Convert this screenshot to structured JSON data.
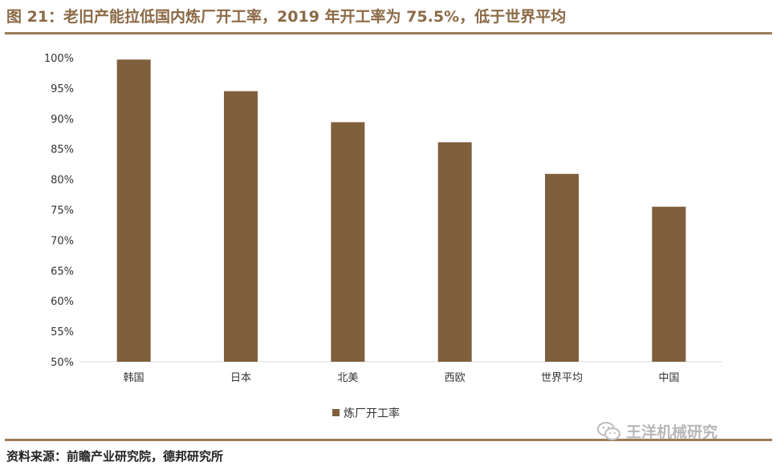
{
  "figure": {
    "title": "图 21：老旧产能拉低国内炼厂开工率，2019 年开工率为 75.5%，低于世界平均",
    "source": "资料来源：前瞻产业研究院，德邦研究所"
  },
  "watermark": {
    "text": "王洋机械研究",
    "icon": "wechat-icon"
  },
  "colors": {
    "bar": "#7f5f3c",
    "rule": "#9c7b59",
    "title": "#8c6a46",
    "axis": "#d9d9d9"
  },
  "chart_data": {
    "type": "bar",
    "categories": [
      "韩国",
      "日本",
      "北美",
      "西欧",
      "世界平均",
      "中国"
    ],
    "series": [
      {
        "name": "炼厂开工率",
        "values": [
          99.7,
          94.5,
          89.4,
          86.1,
          80.9,
          75.5
        ]
      }
    ],
    "ylim": [
      50,
      100
    ],
    "yticks": [
      50,
      55,
      60,
      65,
      70,
      75,
      80,
      85,
      90,
      95,
      100
    ],
    "ytick_format": "%",
    "xlabel": "",
    "ylabel": "",
    "legend": "bottom-center",
    "grid": false
  }
}
